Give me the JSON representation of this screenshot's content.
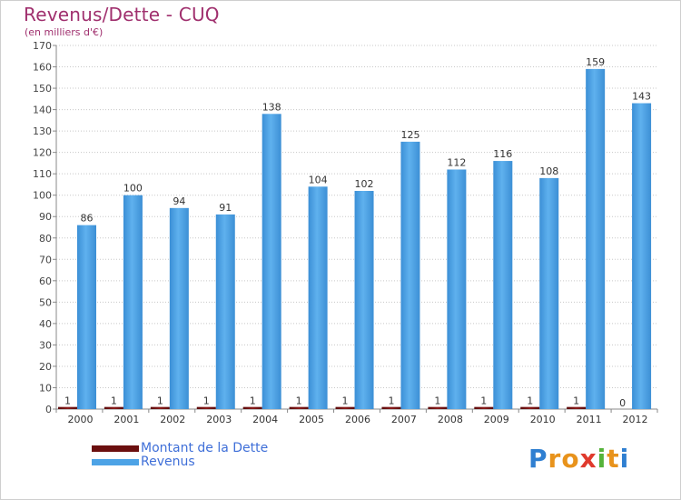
{
  "title": "Revenus/Dette - CUQ",
  "subtitle": "(en milliers d'€)",
  "chart_data": {
    "type": "bar",
    "title": "Revenus/Dette - CUQ",
    "subtitle": "(en milliers d'€)",
    "xlabel": "",
    "ylabel": "",
    "ylim": [
      0,
      170
    ],
    "yticks": [
      0,
      10,
      20,
      30,
      40,
      50,
      60,
      70,
      80,
      90,
      100,
      110,
      120,
      130,
      140,
      150,
      160,
      170
    ],
    "grid": true,
    "legend_position": "bottom-left",
    "categories": [
      "2000",
      "2001",
      "2002",
      "2003",
      "2004",
      "2005",
      "2006",
      "2007",
      "2008",
      "2009",
      "2010",
      "2011",
      "2012"
    ],
    "series": [
      {
        "name": "Montant de la Dette",
        "color": "#6b0f0f",
        "values": [
          1,
          1,
          1,
          1,
          1,
          1,
          1,
          1,
          1,
          1,
          1,
          1,
          0
        ]
      },
      {
        "name": "Revenus",
        "color": "#4da3e6",
        "values": [
          86,
          100,
          94,
          91,
          138,
          104,
          102,
          125,
          112,
          116,
          108,
          159,
          143
        ]
      }
    ]
  },
  "legend": {
    "debt_label": "Montant de la Dette",
    "revenue_label": "Revenus"
  },
  "logo": {
    "letters": [
      "P",
      "r",
      "o",
      "x",
      "i",
      "t",
      "i"
    ],
    "colors": [
      "#2f7fd1",
      "#e8931c",
      "#e8931c",
      "#e03a2d",
      "#55b33a",
      "#e8931c",
      "#2f7fd1"
    ]
  }
}
